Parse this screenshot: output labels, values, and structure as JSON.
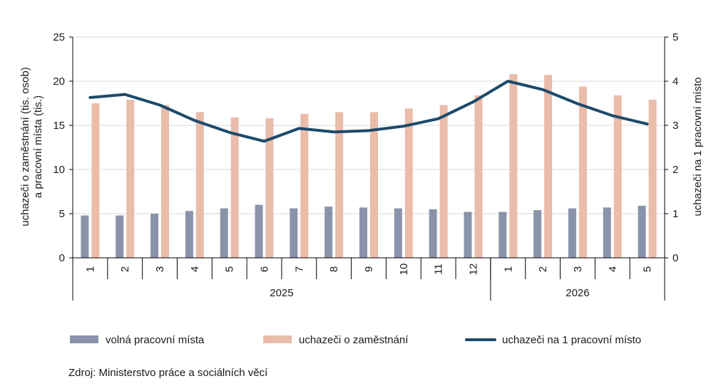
{
  "chart_data": {
    "type": "bar",
    "months": [
      "1",
      "2",
      "3",
      "4",
      "5",
      "6",
      "7",
      "8",
      "9",
      "10",
      "11",
      "12",
      "1",
      "2",
      "3",
      "4",
      "5"
    ],
    "years": [
      {
        "label": "2025",
        "count": 12
      },
      {
        "label": "2026",
        "count": 5
      }
    ],
    "series": [
      {
        "name": "volná pracovní místa",
        "kind": "bar",
        "axis": "left",
        "color": "#8994aa",
        "values": [
          4.8,
          4.8,
          5.0,
          5.3,
          5.6,
          6.0,
          5.6,
          5.8,
          5.7,
          5.6,
          5.5,
          5.2,
          5.2,
          5.4,
          5.6,
          5.7,
          5.9
        ]
      },
      {
        "name": "uchazeči o zaměstnání",
        "kind": "bar",
        "axis": "left",
        "color": "#eabcaa",
        "values": [
          17.5,
          17.9,
          17.3,
          16.5,
          15.9,
          15.8,
          16.3,
          16.5,
          16.5,
          16.9,
          17.3,
          18.4,
          20.8,
          20.7,
          19.4,
          18.4,
          17.9
        ]
      },
      {
        "name": "uchazeči na 1 pracovní místo",
        "kind": "line",
        "axis": "right",
        "color": "#1d4a6b",
        "values": [
          3.63,
          3.7,
          3.46,
          3.11,
          2.84,
          2.64,
          2.93,
          2.85,
          2.88,
          2.98,
          3.15,
          3.53,
          4.0,
          3.81,
          3.49,
          3.22,
          3.03
        ]
      }
    ],
    "y_left": {
      "label_line1": "uchazeči o zaměstnání (tis. osob)",
      "label_line2": "a pracovní místa (tis.)",
      "ticks": [
        0,
        5,
        10,
        15,
        20,
        25
      ],
      "ylim": [
        0,
        25
      ]
    },
    "y_right": {
      "label": "uchazeči na 1 pracovní místo",
      "ticks": [
        0,
        1,
        2,
        3,
        4,
        5
      ],
      "ylim": [
        0,
        5
      ]
    },
    "grid": true,
    "legend_position": "bottom"
  },
  "source": "Zdroj: Ministerstvo práce a sociálních věcí"
}
